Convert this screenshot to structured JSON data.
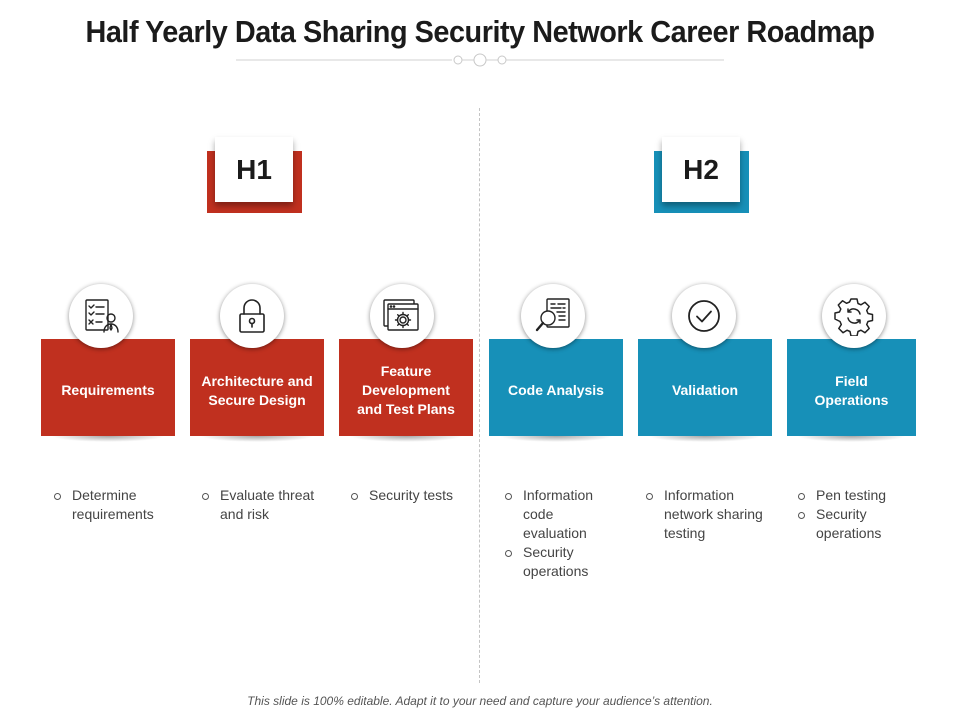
{
  "title": "Half Yearly Data Sharing Security Network Career Roadmap",
  "phases": [
    {
      "label": "H1",
      "color": "#c0301f"
    },
    {
      "label": "H2",
      "color": "#1790b8"
    }
  ],
  "steps": [
    {
      "label": "Requirements",
      "icon": "requirements-checklist-icon",
      "color": "red",
      "bullets": [
        "Determine requirements"
      ]
    },
    {
      "label": "Architecture and Secure Design",
      "icon": "padlock-icon",
      "color": "red",
      "bullets": [
        "Evaluate threat and risk"
      ]
    },
    {
      "label": "Feature Development and Test Plans",
      "icon": "browser-gear-icon",
      "color": "red",
      "bullets": [
        "Security tests"
      ]
    },
    {
      "label": "Code Analysis",
      "icon": "code-magnifier-icon",
      "color": "blue",
      "bullets": [
        "Information code evaluation",
        "Security operations"
      ]
    },
    {
      "label": "Validation",
      "icon": "check-circle-icon",
      "color": "blue",
      "bullets": [
        "Information network sharing testing"
      ]
    },
    {
      "label": "Field Operations",
      "icon": "gear-refresh-icon",
      "color": "blue",
      "bullets": [
        "Pen testing",
        "Security operations"
      ]
    }
  ],
  "footer": "This slide is 100% editable. Adapt it to your need and capture your audience’s attention."
}
